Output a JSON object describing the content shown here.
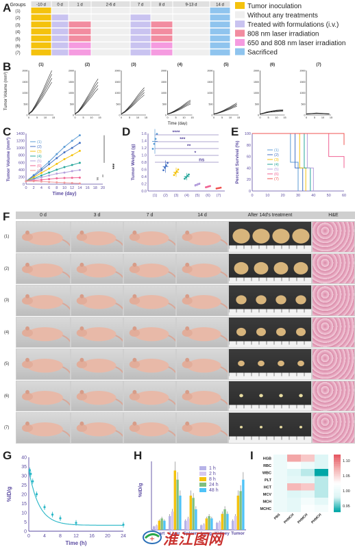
{
  "panels": {
    "a": "A",
    "b": "B",
    "c": "C",
    "d": "D",
    "e": "E",
    "f": "F",
    "g": "G",
    "h": "H",
    "i": "I"
  },
  "panel_a": {
    "groups_header": "Groups",
    "day_headers": [
      "-10 d",
      "0 d",
      "1 d",
      "2-6 d",
      "7 d",
      "8 d",
      "9-13 d",
      "14 d"
    ],
    "group_labels": [
      "(1)",
      "(2)",
      "(3)",
      "(4)",
      "(5)",
      "(6)",
      "(7)"
    ],
    "legend": [
      {
        "label": "Tumor inoculation",
        "color": "#f4c20d"
      },
      {
        "label": "Without any treatments",
        "color": "#efefef"
      },
      {
        "label": "Treated with formulations (i.v.)",
        "color": "#c9c3f0"
      },
      {
        "label": "808 nm laser irradiation",
        "color": "#f28ca0"
      },
      {
        "label": "650 and 808 nm laser irradiation",
        "color": "#f59be0"
      },
      {
        "label": "Sacrificed",
        "color": "#8fc4ee"
      }
    ],
    "row_patterns": [
      [
        "Y",
        "W",
        "W",
        "W",
        "W",
        "W",
        "W",
        "B"
      ],
      [
        "Y",
        "P",
        "W",
        "W",
        "P",
        "W",
        "W",
        "B"
      ],
      [
        "Y",
        "P",
        "R",
        "W",
        "P",
        "R",
        "W",
        "B"
      ],
      [
        "Y",
        "P",
        "R",
        "W",
        "P",
        "R",
        "W",
        "B"
      ],
      [
        "Y",
        "P",
        "R",
        "W",
        "P",
        "R",
        "W",
        "B"
      ],
      [
        "Y",
        "P",
        "M",
        "W",
        "P",
        "M",
        "W",
        "B"
      ],
      [
        "Y",
        "P",
        "M",
        "W",
        "P",
        "M",
        "W",
        "B"
      ]
    ]
  },
  "panel_b": {
    "ylabel": "Tumor Volume (mm³)",
    "xlabel": "Time (day)",
    "titles": [
      "(1)",
      "(2)",
      "(3)",
      "(4)",
      "(5)",
      "(6)",
      "(7)"
    ],
    "yticks": [
      "0",
      "500",
      "1000",
      "1500",
      "2000"
    ],
    "xticks": [
      "0",
      "5",
      "10",
      "15"
    ]
  },
  "panel_c": {
    "xlabel": "Time (day)",
    "ylabel": "Tumor Volume (mm³)",
    "legend": [
      "(1)",
      "(2)",
      "(3)",
      "(4)",
      "(5)",
      "(6)",
      "(7)"
    ],
    "sig": [
      "***",
      "**",
      "ns"
    ],
    "yticks": [
      "0",
      "200",
      "400",
      "600",
      "800",
      "1000",
      "1200",
      "1400"
    ],
    "xticks": [
      "0",
      "2",
      "4",
      "6",
      "8",
      "10",
      "12",
      "14",
      "16",
      "18",
      "20"
    ]
  },
  "panel_d": {
    "ylabel": "Tumor Weight (g)",
    "sig": [
      "****",
      "***",
      "**",
      "*",
      "ns"
    ],
    "xticks": [
      "(1)",
      "(2)",
      "(3)",
      "(4)",
      "(5)",
      "(6)",
      "(7)"
    ],
    "yticks": [
      "0.0",
      "0.2",
      "0.4",
      "0.6",
      "0.8",
      "1.0",
      "1.2",
      "1.4",
      "1.6"
    ]
  },
  "panel_e": {
    "ylabel": "Percent Survival (%)",
    "legend": [
      "(1)",
      "(2)",
      "(3)",
      "(4)",
      "(5)",
      "(6)",
      "(7)"
    ],
    "yticks": [
      "0",
      "20",
      "40",
      "60",
      "80",
      "100"
    ],
    "xticks": [
      "0",
      "10",
      "20",
      "30",
      "40",
      "50",
      "60"
    ]
  },
  "panel_f": {
    "columns": [
      "0 d",
      "3 d",
      "7 d",
      "14 d",
      "After 14d's treatment",
      "H&E"
    ],
    "rows": [
      "(1)",
      "(2)",
      "(3)",
      "(4)",
      "(5)",
      "(6)",
      "(7)"
    ]
  },
  "panel_g": {
    "ylabel": "%ID/g",
    "xlabel": "Time (h)",
    "yticks": [
      "0",
      "5",
      "10",
      "15",
      "20",
      "25",
      "30",
      "35",
      "40"
    ],
    "xticks": [
      "0",
      "4",
      "8",
      "12",
      "16",
      "20",
      "24"
    ]
  },
  "panel_h": {
    "ylabel": "%ID/g",
    "legend": [
      "1 h",
      "2 h",
      "8 h",
      "24 h",
      "48 h"
    ],
    "categories": [
      "Heart",
      "Liver",
      "Spleen",
      "Lung",
      "Kidney",
      "Tumor"
    ]
  },
  "panel_i": {
    "rows": [
      "HGB",
      "RBC",
      "WBC",
      "PLT",
      "HCT",
      "MCV",
      "MCH",
      "MCHC"
    ],
    "columns": [
      "PBS",
      "PHMCH",
      "PHMCH",
      "PHMCH"
    ],
    "colorbar": [
      "1.10",
      "1.05",
      "1.00",
      "0.95"
    ]
  },
  "watermark": "淮江图网",
  "chart_data": [
    {
      "type": "line",
      "panel": "B",
      "x": [
        0,
        2,
        4,
        6,
        8,
        10,
        12,
        14
      ],
      "series": [
        {
          "name": "(1)",
          "values": [
            50,
            180,
            400,
            650,
            900,
            1200,
            1500,
            1800
          ]
        },
        {
          "name": "(2)",
          "values": [
            50,
            160,
            350,
            560,
            780,
            1000,
            1250,
            1450
          ]
        },
        {
          "name": "(3)",
          "values": [
            50,
            140,
            280,
            430,
            600,
            780,
            950,
            1100
          ]
        },
        {
          "name": "(4)",
          "values": [
            50,
            90,
            160,
            240,
            320,
            420,
            520,
            600
          ]
        },
        {
          "name": "(5)",
          "values": [
            50,
            80,
            130,
            190,
            260,
            330,
            410,
            480
          ]
        },
        {
          "name": "(6)",
          "values": [
            50,
            80,
            120,
            150,
            170,
            190,
            200,
            210
          ]
        },
        {
          "name": "(7)",
          "values": [
            50,
            60,
            70,
            80,
            75,
            70,
            60,
            50
          ]
        }
      ],
      "xlabel": "Time (day)",
      "ylabel": "Tumor Volume (mm³)",
      "ylim": [
        0,
        2000
      ]
    },
    {
      "type": "line",
      "panel": "C",
      "x": [
        0,
        2,
        4,
        6,
        8,
        10,
        12,
        14
      ],
      "series": [
        {
          "name": "(1)",
          "values": [
            80,
            250,
            430,
            620,
            830,
            1030,
            1200,
            1350
          ],
          "color": "#5b9bd5"
        },
        {
          "name": "(2)",
          "values": [
            80,
            220,
            380,
            550,
            720,
            880,
            1000,
            1140
          ],
          "color": "#4472c4"
        },
        {
          "name": "(3)",
          "values": [
            80,
            190,
            310,
            430,
            560,
            690,
            800,
            920
          ],
          "color": "#f4c20d"
        },
        {
          "name": "(4)",
          "values": [
            80,
            150,
            240,
            320,
            400,
            470,
            530,
            590
          ],
          "color": "#26a69a"
        },
        {
          "name": "(5)",
          "values": [
            80,
            130,
            190,
            240,
            290,
            320,
            360,
            390
          ],
          "color": "#b39ddb"
        },
        {
          "name": "(6)",
          "values": [
            80,
            100,
            120,
            140,
            160,
            170,
            175,
            180
          ],
          "color": "#f06292"
        },
        {
          "name": "(7)",
          "values": [
            80,
            80,
            70,
            60,
            50,
            40,
            30,
            20
          ],
          "color": "#ef9a9a"
        }
      ],
      "xlabel": "Time (day)",
      "ylabel": "Tumor Volume (mm³)",
      "ylim": [
        0,
        1400
      ],
      "xlim": [
        0,
        20
      ]
    },
    {
      "type": "scatter",
      "panel": "D",
      "categories": [
        "(1)",
        "(2)",
        "(3)",
        "(4)",
        "(5)",
        "(6)",
        "(7)"
      ],
      "values": [
        1.38,
        0.68,
        0.52,
        0.4,
        0.18,
        0.12,
        0.08
      ],
      "colors": [
        "#5b9bd5",
        "#4472c4",
        "#f4c20d",
        "#26a69a",
        "#b39ddb",
        "#f06292",
        "#ef5350"
      ],
      "ylabel": "Tumor Weight (g)",
      "ylim": [
        0,
        1.6
      ]
    },
    {
      "type": "line",
      "panel": "E",
      "series": [
        {
          "name": "(1)",
          "x": [
            0,
            20,
            25,
            30
          ],
          "values": [
            100,
            100,
            50,
            0
          ],
          "color": "#5b9bd5"
        },
        {
          "name": "(2)",
          "x": [
            0,
            22,
            28,
            33
          ],
          "values": [
            100,
            100,
            40,
            0
          ],
          "color": "#4472c4"
        },
        {
          "name": "(3)",
          "x": [
            0,
            25,
            31,
            35
          ],
          "values": [
            100,
            100,
            40,
            0
          ],
          "color": "#f4c20d"
        },
        {
          "name": "(4)",
          "x": [
            0,
            28,
            34,
            38
          ],
          "values": [
            100,
            100,
            40,
            0
          ],
          "color": "#26a69a"
        },
        {
          "name": "(5)",
          "x": [
            0,
            30,
            36,
            40
          ],
          "values": [
            100,
            100,
            40,
            0
          ],
          "color": "#b39ddb"
        },
        {
          "name": "(6)",
          "x": [
            0,
            40,
            50,
            60
          ],
          "values": [
            100,
            100,
            60,
            40
          ],
          "color": "#f06292"
        },
        {
          "name": "(7)",
          "x": [
            0,
            55,
            60
          ],
          "values": [
            100,
            100,
            80
          ],
          "color": "#ef5350"
        }
      ],
      "ylabel": "Percent Survival (%)",
      "ylim": [
        0,
        100
      ],
      "xlim": [
        0,
        60
      ]
    },
    {
      "type": "line",
      "panel": "G",
      "x": [
        0.25,
        0.5,
        1,
        2,
        4,
        6,
        8,
        12,
        24
      ],
      "values": [
        33,
        31,
        27,
        20,
        13,
        9,
        7,
        4.5,
        3.5
      ],
      "xlabel": "Time (h)",
      "ylabel": "%ID/g",
      "ylim": [
        0,
        40
      ],
      "xlim": [
        0,
        24
      ]
    },
    {
      "type": "bar",
      "panel": "H",
      "categories": [
        "Heart",
        "Liver",
        "Spleen",
        "Lung",
        "Kidney",
        "Tumor"
      ],
      "series": [
        {
          "name": "1 h",
          "values": [
            1.5,
            6,
            4,
            2,
            3,
            4
          ],
          "color": "#b7b3e8"
        },
        {
          "name": "2 h",
          "values": [
            2,
            8,
            5,
            2.5,
            3.5,
            6
          ],
          "color": "#d6c7f0"
        },
        {
          "name": "8 h",
          "values": [
            4,
            26,
            15,
            5,
            7,
            15
          ],
          "color": "#f4c20d"
        },
        {
          "name": "24 h",
          "values": [
            5,
            22,
            14,
            6,
            9,
            17
          ],
          "color": "#7fbf7f"
        },
        {
          "name": "48 h",
          "values": [
            4,
            15,
            9,
            5,
            7,
            22
          ],
          "color": "#4fc3f7"
        }
      ],
      "ylabel": "%ID/g",
      "ylim": [
        0,
        30
      ]
    },
    {
      "type": "heatmap",
      "panel": "I",
      "rows": [
        "HGB",
        "RBC",
        "WBC",
        "PLT",
        "HCT",
        "MCV",
        "MCH",
        "MCHC"
      ],
      "columns": [
        "PBS",
        "PHMCH",
        "PHMCH",
        "PHMCH"
      ],
      "values": [
        [
          1.0,
          1.08,
          1.06,
          0.98
        ],
        [
          1.0,
          1.02,
          1.0,
          0.98
        ],
        [
          1.0,
          0.98,
          0.97,
          0.9
        ],
        [
          1.0,
          0.99,
          0.99,
          0.97
        ],
        [
          1.0,
          1.07,
          1.06,
          0.97
        ],
        [
          1.0,
          0.98,
          0.99,
          0.97
        ],
        [
          1.0,
          0.99,
          1.01,
          0.99
        ],
        [
          1.0,
          0.99,
          1.02,
          1.01
        ]
      ],
      "zlim": [
        0.93,
        1.12
      ]
    }
  ]
}
